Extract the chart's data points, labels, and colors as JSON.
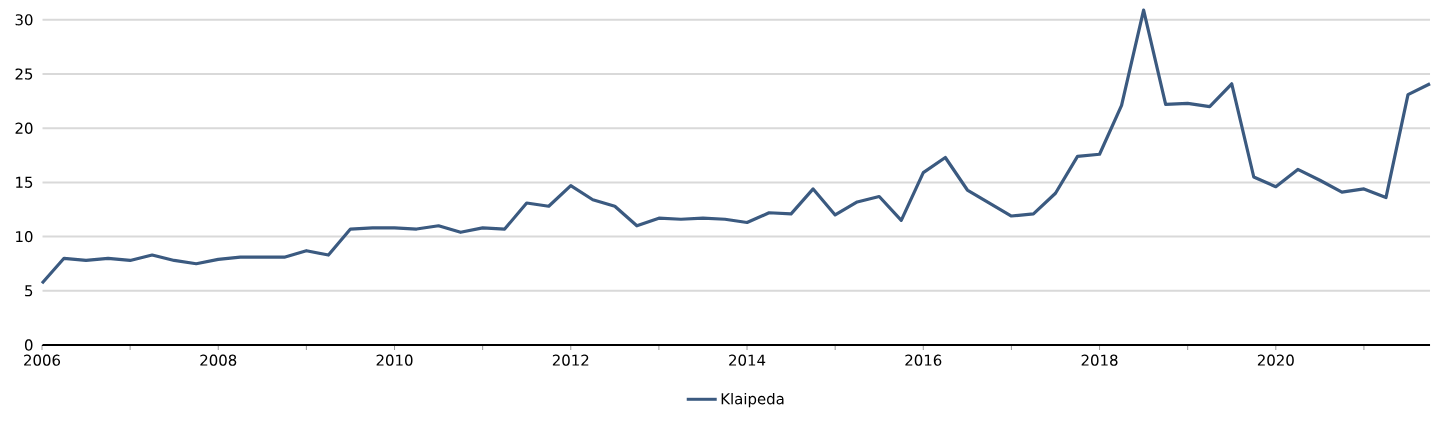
{
  "chart_data": {
    "type": "line",
    "x": [
      2006.0,
      2006.25,
      2006.5,
      2006.75,
      2007.0,
      2007.25,
      2007.5,
      2007.75,
      2008.0,
      2008.25,
      2008.5,
      2008.75,
      2009.0,
      2009.25,
      2009.5,
      2009.75,
      2010.0,
      2010.25,
      2010.5,
      2010.75,
      2011.0,
      2011.25,
      2011.5,
      2011.75,
      2012.0,
      2012.25,
      2012.5,
      2012.75,
      2013.0,
      2013.25,
      2013.5,
      2013.75,
      2014.0,
      2014.25,
      2014.5,
      2014.75,
      2015.0,
      2015.25,
      2015.5,
      2015.75,
      2016.0,
      2016.25,
      2016.5,
      2016.75,
      2017.0,
      2017.25,
      2017.5,
      2017.75,
      2018.0,
      2018.25,
      2018.5,
      2018.75,
      2019.0,
      2019.25,
      2019.5,
      2019.75,
      2020.0,
      2020.25,
      2020.5,
      2020.75,
      2021.0,
      2021.25,
      2021.5,
      2021.75
    ],
    "series": [
      {
        "name": "Klaipeda",
        "color": "#3b5a80",
        "values": [
          5.7,
          8.0,
          7.8,
          8.0,
          7.8,
          8.3,
          7.8,
          7.5,
          7.9,
          8.1,
          8.1,
          8.1,
          8.7,
          8.3,
          10.7,
          10.8,
          10.8,
          10.7,
          11.0,
          10.4,
          10.8,
          10.7,
          13.1,
          12.8,
          14.7,
          13.4,
          12.8,
          11.0,
          11.7,
          11.6,
          11.7,
          11.6,
          11.3,
          12.2,
          12.1,
          14.4,
          12.0,
          13.2,
          13.7,
          11.5,
          15.9,
          17.3,
          14.3,
          13.1,
          11.9,
          12.1,
          14.0,
          17.4,
          17.6,
          22.1,
          30.9,
          22.2,
          22.3,
          22.0,
          24.1,
          15.5,
          14.6,
          16.2,
          15.2,
          14.1,
          14.4,
          13.6,
          23.1,
          24.1
        ]
      }
    ],
    "xlim": [
      2006,
      2021.75
    ],
    "xticks": [
      2006,
      {
        "value": 2007,
        "label": null
      },
      2008,
      {
        "value": 2009,
        "label": null
      },
      2010,
      {
        "value": 2011,
        "label": null
      },
      2012,
      {
        "value": 2013,
        "label": null
      },
      2014,
      {
        "value": 2015,
        "label": null
      },
      2016,
      {
        "value": 2017,
        "label": null
      },
      2018,
      {
        "value": 2019,
        "label": null
      },
      2020,
      {
        "value": 2021,
        "label": null
      }
    ],
    "ylim": [
      0,
      31
    ],
    "yticks": [
      0,
      5,
      10,
      15,
      20,
      25,
      30
    ],
    "grid": "y",
    "legend": "bottom",
    "marker": "none",
    "line_style": "solid"
  }
}
